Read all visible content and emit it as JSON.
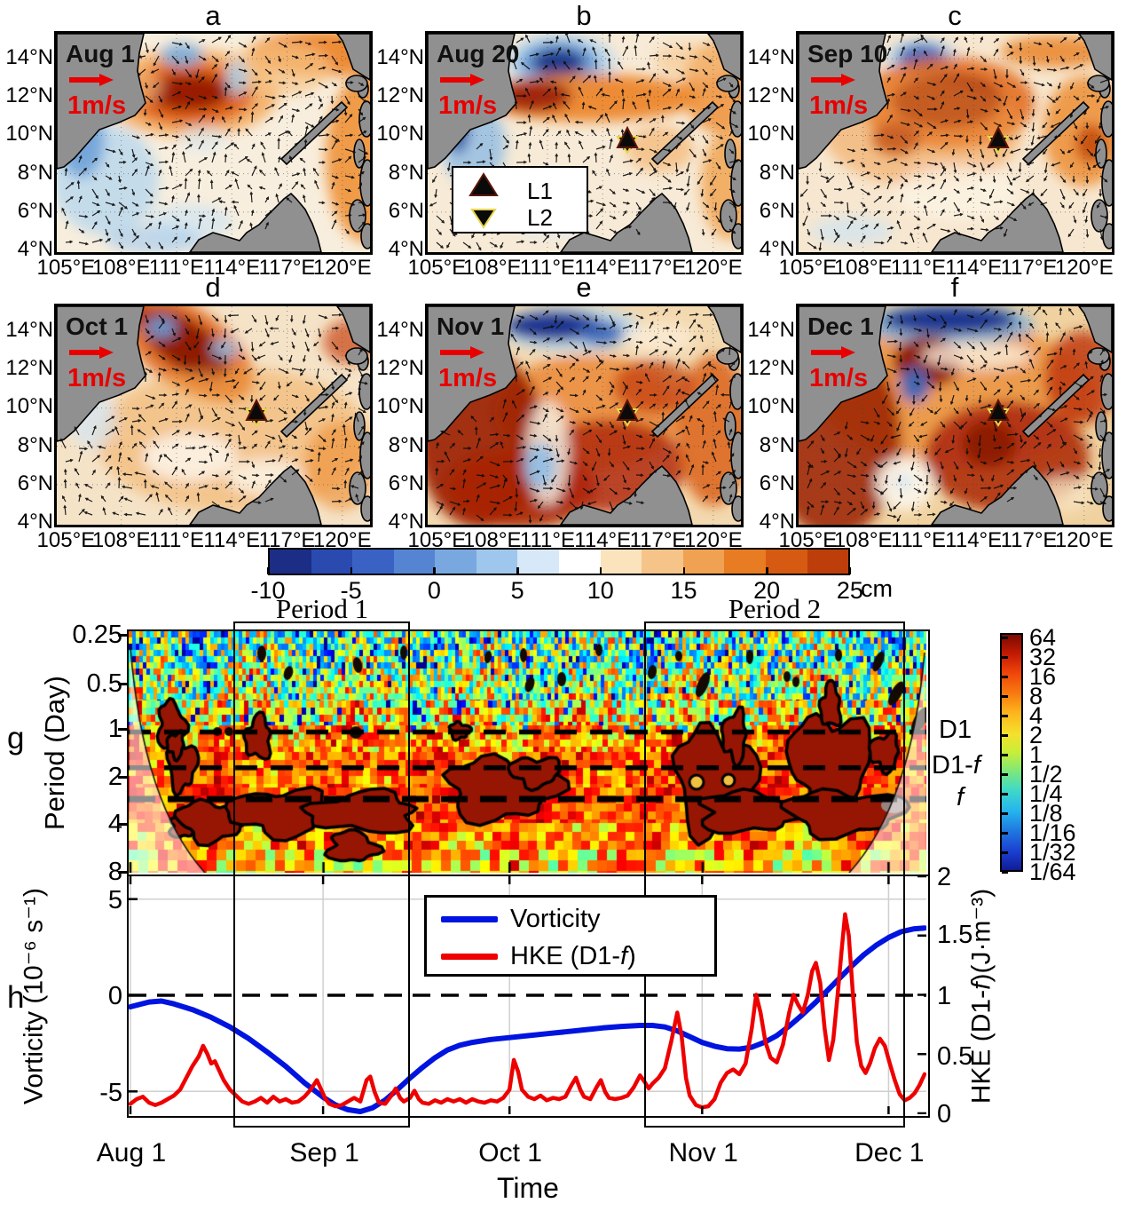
{
  "map_panels": [
    {
      "letter": "a",
      "date": "Aug 1"
    },
    {
      "letter": "b",
      "date": "Aug 20"
    },
    {
      "letter": "c",
      "date": "Sep 10"
    },
    {
      "letter": "d",
      "date": "Oct 1"
    },
    {
      "letter": "e",
      "date": "Nov 1"
    },
    {
      "letter": "f",
      "date": "Dec 1"
    }
  ],
  "map_axes": {
    "lat_ticks": [
      "14°N",
      "12°N",
      "10°N",
      "8°N",
      "6°N",
      "4°N"
    ],
    "lon_ticks": [
      "105°E",
      "108°E",
      "111°E",
      "114°E",
      "117°E",
      "120°E"
    ]
  },
  "scale_arrow_label": "1m/s",
  "station_legend": {
    "items": [
      {
        "symbol": "triangle-up",
        "label": "L1"
      },
      {
        "symbol": "triangle-down",
        "label": "L2"
      }
    ]
  },
  "ssha_colorbar": {
    "tick_labels": [
      "-10",
      "-5",
      "0",
      "5",
      "10",
      "15",
      "20",
      "25"
    ],
    "unit": "cm"
  },
  "period_labels": {
    "period1": "Period 1",
    "period2": "Period 2"
  },
  "wavelet_panel": {
    "letter": "g",
    "ylabel": "Period (Day)",
    "y_ticks": [
      "0.25",
      "0.5",
      "1",
      "2",
      "4",
      "8"
    ],
    "right_line_labels": [
      {
        "pre": "D1",
        "it": ""
      },
      {
        "pre": "D1-",
        "it": "f"
      },
      {
        "pre": "",
        "it": "f"
      }
    ],
    "colorbar_ticks": [
      "64",
      "32",
      "16",
      "8",
      "4",
      "2",
      "1",
      "1/2",
      "1/4",
      "1/8",
      "1/16",
      "1/32",
      "1/64"
    ]
  },
  "hke_panel": {
    "letter": "h",
    "left_ylabel": "Vorticity (10⁻⁶ s⁻¹)",
    "right_ylabel": {
      "pre": "HKE (D1-",
      "it": "f",
      "post": ")(J·m⁻³)"
    },
    "left_ticks": [
      "5",
      "0",
      "-5"
    ],
    "right_ticks": [
      "2",
      "1.5",
      "1",
      "0.5",
      "0"
    ],
    "legend": [
      {
        "pre": "Vorticity",
        "it": "",
        "post": "",
        "color": "#0014e0"
      },
      {
        "pre": "HKE (D1-",
        "it": "f",
        "post": ")",
        "color": "#ee0000"
      }
    ]
  },
  "time_axis": {
    "tick_labels": [
      "Aug 1",
      "Sep 1",
      "Oct 1",
      "Nov 1",
      "Dec 1"
    ],
    "label": "Time"
  },
  "chart_data": {
    "maps": {
      "type": "heatmap",
      "variable": "sea level anomaly (cm) with surface current vectors",
      "panels": [
        {
          "label": "a",
          "date": "Aug 1"
        },
        {
          "label": "b",
          "date": "Aug 20"
        },
        {
          "label": "c",
          "date": "Sep 10"
        },
        {
          "label": "d",
          "date": "Oct 1"
        },
        {
          "label": "e",
          "date": "Nov 1"
        },
        {
          "label": "f",
          "date": "Dec 1"
        }
      ],
      "lon_ticks_deg_e": [
        105,
        108,
        111,
        114,
        117,
        120
      ],
      "lat_ticks_deg_n": [
        14,
        12,
        10,
        8,
        6,
        4
      ],
      "colorbar_range_cm": [
        -10,
        25
      ],
      "colorbar_ticks_cm": [
        -10,
        -5,
        0,
        5,
        10,
        15,
        20,
        25
      ],
      "colorbar_unit": "cm",
      "vector_scale": "1m/s",
      "stations": [
        {
          "name": "L1",
          "marker": "triangle-up"
        },
        {
          "name": "L2",
          "marker": "triangle-down"
        }
      ],
      "station_location": {
        "lon_e": 115.35,
        "lat_n": 9.75
      }
    },
    "wavelet": {
      "type": "heatmap",
      "panel": "g",
      "ylabel": "Period (Day)",
      "y_scale": "log2",
      "y_ticks_day": [
        0.25,
        0.5,
        1,
        2,
        4,
        8
      ],
      "x_range": [
        "Aug 1",
        "Dec 7"
      ],
      "power_colorbar_ticks": [
        "64",
        "32",
        "16",
        "8",
        "4",
        "2",
        "1",
        "1/2",
        "1/4",
        "1/8",
        "1/16",
        "1/32",
        "1/64"
      ],
      "dashed_lines": [
        {
          "label": "D1",
          "period_day": 1.05
        },
        {
          "label": "D1-f",
          "period_day": 1.8
        },
        {
          "label": "f",
          "period_day": 2.85
        }
      ],
      "highlight_boxes": [
        {
          "label": "Period 1",
          "start_day": 16.5,
          "end_day": 45
        },
        {
          "label": "Period 2",
          "start_day": 82.5,
          "end_day": 124.5
        }
      ]
    },
    "timeseries": {
      "type": "line",
      "panel": "h",
      "x_unit": "days since Aug 1",
      "x_ticks": [
        {
          "day": 0,
          "label": "Aug 1"
        },
        {
          "day": 31,
          "label": "Sep 1"
        },
        {
          "day": 61,
          "label": "Oct 1"
        },
        {
          "day": 92,
          "label": "Nov 1"
        },
        {
          "day": 122,
          "label": "Dec 1"
        }
      ],
      "x_max_day": 127.8,
      "xlabel": "Time",
      "zero_line_left_axis": 0,
      "series": [
        {
          "name": "Vorticity",
          "axis": "left",
          "units": "10⁻⁶ s⁻¹",
          "ylim": [
            -6.3,
            6.2
          ],
          "color": "#0014e0",
          "points": [
            [
              0,
              -0.6
            ],
            [
              3,
              -0.35
            ],
            [
              5,
              -0.3
            ],
            [
              7,
              -0.45
            ],
            [
              10,
              -0.75
            ],
            [
              13,
              -1.15
            ],
            [
              16,
              -1.65
            ],
            [
              19,
              -2.25
            ],
            [
              22,
              -2.95
            ],
            [
              25,
              -3.7
            ],
            [
              28,
              -4.55
            ],
            [
              31,
              -5.3
            ],
            [
              33,
              -5.7
            ],
            [
              35,
              -5.95
            ],
            [
              37,
              -6.05
            ],
            [
              39,
              -5.85
            ],
            [
              41,
              -5.45
            ],
            [
              43,
              -4.9
            ],
            [
              45,
              -4.3
            ],
            [
              47,
              -3.75
            ],
            [
              49,
              -3.25
            ],
            [
              51,
              -2.85
            ],
            [
              53,
              -2.6
            ],
            [
              55,
              -2.45
            ],
            [
              58,
              -2.3
            ],
            [
              61,
              -2.2
            ],
            [
              64,
              -2.1
            ],
            [
              67,
              -2.0
            ],
            [
              70,
              -1.9
            ],
            [
              73,
              -1.8
            ],
            [
              76,
              -1.7
            ],
            [
              79,
              -1.62
            ],
            [
              82,
              -1.57
            ],
            [
              84,
              -1.57
            ],
            [
              86,
              -1.65
            ],
            [
              88,
              -1.85
            ],
            [
              90,
              -2.15
            ],
            [
              92,
              -2.45
            ],
            [
              94,
              -2.65
            ],
            [
              96,
              -2.78
            ],
            [
              98,
              -2.8
            ],
            [
              100,
              -2.7
            ],
            [
              102,
              -2.45
            ],
            [
              104,
              -2.1
            ],
            [
              106,
              -1.6
            ],
            [
              108,
              -1.05
            ],
            [
              110,
              -0.45
            ],
            [
              112,
              0.2
            ],
            [
              114,
              0.85
            ],
            [
              116,
              1.5
            ],
            [
              118,
              2.1
            ],
            [
              120,
              2.6
            ],
            [
              122,
              3.0
            ],
            [
              124,
              3.3
            ],
            [
              126,
              3.45
            ],
            [
              127.8,
              3.5
            ]
          ]
        },
        {
          "name": "HKE (D1-f)",
          "axis": "right",
          "units": "J·m⁻³",
          "ylim": [
            0,
            2
          ],
          "color": "#ee0000",
          "points": [
            [
              0,
              0.08
            ],
            [
              1,
              0.12
            ],
            [
              2,
              0.14
            ],
            [
              3,
              0.09
            ],
            [
              4,
              0.07
            ],
            [
              5,
              0.09
            ],
            [
              6,
              0.12
            ],
            [
              7,
              0.15
            ],
            [
              8,
              0.2
            ],
            [
              9,
              0.3
            ],
            [
              10,
              0.4
            ],
            [
              11,
              0.48
            ],
            [
              11.7,
              0.57
            ],
            [
              12.4,
              0.5
            ],
            [
              13,
              0.42
            ],
            [
              13.6,
              0.44
            ],
            [
              14.3,
              0.36
            ],
            [
              15,
              0.28
            ],
            [
              16,
              0.2
            ],
            [
              17,
              0.15
            ],
            [
              18,
              0.1
            ],
            [
              19,
              0.08
            ],
            [
              20,
              0.1
            ],
            [
              21,
              0.13
            ],
            [
              22,
              0.09
            ],
            [
              23,
              0.14
            ],
            [
              24,
              0.1
            ],
            [
              25,
              0.12
            ],
            [
              26,
              0.09
            ],
            [
              27,
              0.1
            ],
            [
              28,
              0.14
            ],
            [
              29,
              0.2
            ],
            [
              30,
              0.28
            ],
            [
              30.7,
              0.2
            ],
            [
              31.4,
              0.12
            ],
            [
              32,
              0.08
            ],
            [
              33,
              0.06
            ],
            [
              34,
              0.07
            ],
            [
              35,
              0.1
            ],
            [
              36,
              0.13
            ],
            [
              37,
              0.1
            ],
            [
              38,
              0.28
            ],
            [
              38.6,
              0.31
            ],
            [
              39.3,
              0.18
            ],
            [
              40,
              0.09
            ],
            [
              41,
              0.08
            ],
            [
              42,
              0.15
            ],
            [
              42.7,
              0.21
            ],
            [
              43.4,
              0.13
            ],
            [
              44,
              0.1
            ],
            [
              45,
              0.13
            ],
            [
              45.7,
              0.19
            ],
            [
              46.4,
              0.12
            ],
            [
              47,
              0.09
            ],
            [
              48,
              0.08
            ],
            [
              49,
              0.11
            ],
            [
              50,
              0.09
            ],
            [
              51,
              0.12
            ],
            [
              52,
              0.1
            ],
            [
              53,
              0.12
            ],
            [
              54,
              0.09
            ],
            [
              55,
              0.12
            ],
            [
              56,
              0.1
            ],
            [
              57,
              0.09
            ],
            [
              58,
              0.11
            ],
            [
              59,
              0.1
            ],
            [
              60,
              0.13
            ],
            [
              61,
              0.2
            ],
            [
              61.7,
              0.45
            ],
            [
              62.4,
              0.35
            ],
            [
              63,
              0.2
            ],
            [
              64,
              0.14
            ],
            [
              65,
              0.12
            ],
            [
              66,
              0.15
            ],
            [
              67,
              0.11
            ],
            [
              68,
              0.13
            ],
            [
              69,
              0.12
            ],
            [
              70,
              0.14
            ],
            [
              71,
              0.24
            ],
            [
              71.7,
              0.3
            ],
            [
              72.4,
              0.2
            ],
            [
              73,
              0.14
            ],
            [
              74,
              0.12
            ],
            [
              75,
              0.22
            ],
            [
              75.7,
              0.28
            ],
            [
              76.4,
              0.18
            ],
            [
              77,
              0.13
            ],
            [
              78,
              0.12
            ],
            [
              79,
              0.13
            ],
            [
              80,
              0.15
            ],
            [
              81,
              0.22
            ],
            [
              82,
              0.32
            ],
            [
              82.7,
              0.27
            ],
            [
              83.4,
              0.21
            ],
            [
              84,
              0.25
            ],
            [
              85,
              0.3
            ],
            [
              86,
              0.38
            ],
            [
              87,
              0.6
            ],
            [
              88,
              0.85
            ],
            [
              88.7,
              0.65
            ],
            [
              89.4,
              0.3
            ],
            [
              90,
              0.15
            ],
            [
              91,
              0.07
            ],
            [
              92,
              0.05
            ],
            [
              93,
              0.06
            ],
            [
              94,
              0.12
            ],
            [
              95,
              0.26
            ],
            [
              96,
              0.34
            ],
            [
              97,
              0.37
            ],
            [
              98,
              0.33
            ],
            [
              99,
              0.42
            ],
            [
              100,
              0.72
            ],
            [
              100.7,
              1.0
            ],
            [
              101.4,
              0.85
            ],
            [
              102.2,
              0.6
            ],
            [
              103,
              0.47
            ],
            [
              104,
              0.43
            ],
            [
              105,
              0.58
            ],
            [
              106,
              0.85
            ],
            [
              106.7,
              1.0
            ],
            [
              107.4,
              0.92
            ],
            [
              108.2,
              0.85
            ],
            [
              109,
              1.0
            ],
            [
              109.7,
              1.2
            ],
            [
              110.3,
              1.27
            ],
            [
              111,
              1.1
            ],
            [
              111.7,
              0.72
            ],
            [
              112.4,
              0.45
            ],
            [
              113.1,
              0.62
            ],
            [
              113.8,
              1.0
            ],
            [
              114.4,
              1.35
            ],
            [
              115,
              1.68
            ],
            [
              115.6,
              1.5
            ],
            [
              116.2,
              1.05
            ],
            [
              116.9,
              0.6
            ],
            [
              117.6,
              0.4
            ],
            [
              118.3,
              0.34
            ],
            [
              119,
              0.42
            ],
            [
              119.8,
              0.55
            ],
            [
              120.6,
              0.63
            ],
            [
              121.4,
              0.57
            ],
            [
              122.2,
              0.42
            ],
            [
              123,
              0.28
            ],
            [
              123.8,
              0.16
            ],
            [
              124.6,
              0.11
            ],
            [
              125.4,
              0.13
            ],
            [
              126.2,
              0.17
            ],
            [
              127,
              0.24
            ],
            [
              127.8,
              0.33
            ]
          ]
        }
      ]
    }
  }
}
